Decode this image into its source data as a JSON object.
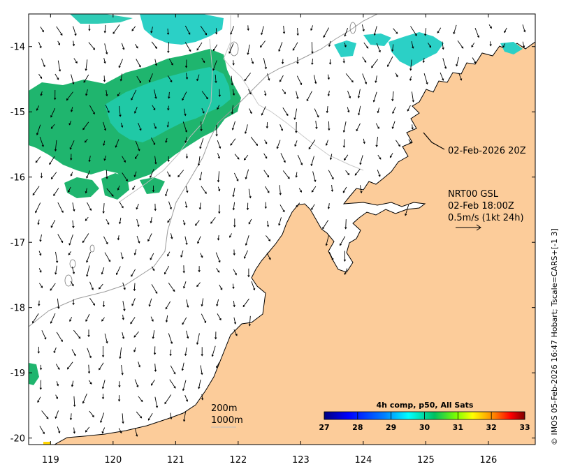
{
  "map": {
    "lon_ticks": [
      "119",
      "120",
      "121",
      "122",
      "123",
      "124",
      "125",
      "126"
    ],
    "lat_ticks": [
      "-14",
      "-15",
      "-16",
      "-17",
      "-18",
      "-19",
      "-20"
    ],
    "lon_range": [
      118.65,
      126.75
    ],
    "lat_range": [
      -20.1,
      -13.5
    ],
    "land_color": "#fccc9a",
    "ocean_color": "#ffffff"
  },
  "annotations": {
    "track_time": "02-Feb-2026 20Z",
    "current_product": "NRT00 GSL",
    "current_time": "02-Feb 18:00Z",
    "scale_arrow": "0.5m/s (1kt 24h)",
    "isobath_200": "200m",
    "isobath_1000": "1000m"
  },
  "colorbar": {
    "title": "4h comp, p50, All Sats",
    "ticks": [
      "27",
      "28",
      "29",
      "30",
      "31",
      "32",
      "33"
    ],
    "range": [
      27,
      33
    ],
    "colors": [
      "#00007f",
      "#0000ff",
      "#007fff",
      "#00ffff",
      "#00c060",
      "#7fff00",
      "#ffff00",
      "#ff7f00",
      "#ff0000",
      "#7f0000"
    ]
  },
  "credit": "© IMOS 05-Feb-2026 16:47 Hobart; Tscale=CARS+[-1 3]"
}
